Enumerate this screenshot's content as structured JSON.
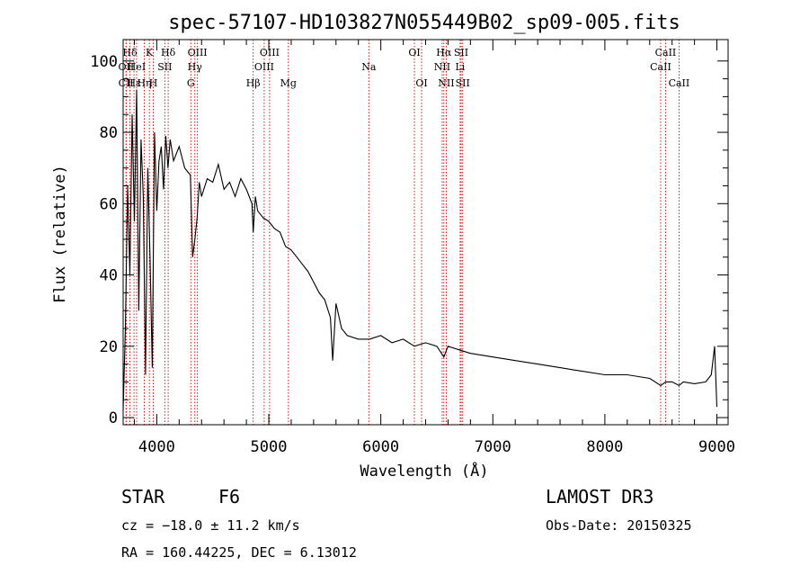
{
  "chart_data": {
    "type": "line",
    "title": "spec-57107-HD103827N055449B02_sp09-005.fits",
    "xlabel": "Wavelength (Å)",
    "ylabel": "Flux (relative)",
    "xlim": [
      3700,
      9100
    ],
    "ylim": [
      -2,
      106
    ],
    "xticks": [
      4000,
      5000,
      6000,
      7000,
      8000,
      9000
    ],
    "yticks": [
      0,
      20,
      40,
      60,
      80,
      100
    ],
    "series": [
      {
        "name": "flux",
        "x": [
          3700,
          3720,
          3740,
          3760,
          3780,
          3800,
          3820,
          3840,
          3860,
          3880,
          3900,
          3920,
          3940,
          3960,
          3980,
          4000,
          4020,
          4040,
          4060,
          4080,
          4100,
          4120,
          4150,
          4200,
          4250,
          4300,
          4320,
          4340,
          4360,
          4380,
          4400,
          4450,
          4500,
          4550,
          4600,
          4650,
          4700,
          4750,
          4800,
          4850,
          4861,
          4880,
          4900,
          4950,
          5000,
          5050,
          5100,
          5150,
          5200,
          5250,
          5300,
          5350,
          5400,
          5450,
          5500,
          5550,
          5570,
          5600,
          5650,
          5700,
          5800,
          5900,
          6000,
          6100,
          6200,
          6300,
          6400,
          6500,
          6563,
          6600,
          6700,
          6800,
          6900,
          7000,
          7200,
          7400,
          7600,
          7800,
          8000,
          8200,
          8400,
          8498,
          8542,
          8600,
          8662,
          8700,
          8800,
          8900,
          8950,
          8980,
          9000
        ],
        "y": [
          2,
          25,
          65,
          40,
          85,
          55,
          92,
          30,
          78,
          62,
          12,
          70,
          45,
          14,
          80,
          58,
          72,
          76,
          64,
          79,
          70,
          78,
          72,
          76,
          70,
          68,
          45,
          50,
          56,
          66,
          62,
          67,
          66,
          71,
          64,
          66,
          62,
          67,
          64,
          60,
          52,
          62,
          58,
          56,
          55,
          53,
          52,
          48,
          47,
          45,
          43,
          41,
          38,
          35,
          33,
          28,
          16,
          32,
          25,
          23,
          22,
          22,
          23,
          21,
          22,
          20,
          21,
          20,
          17,
          20,
          19,
          18,
          17.5,
          17,
          16,
          15,
          14,
          13,
          12,
          12,
          11,
          9,
          10,
          10,
          9,
          10,
          9.5,
          10,
          12,
          20,
          3
        ]
      }
    ],
    "spectral_lines": [
      {
        "label": "Hδ",
        "wavelength": 3760,
        "row": 1
      },
      {
        "label": "OII",
        "wavelength": 3727,
        "row": 2
      },
      {
        "label": "CII",
        "wavelength": 3726,
        "row": 3
      },
      {
        "label": "Hε",
        "wavelength": 3797,
        "row": 3
      },
      {
        "label": "HeI",
        "wavelength": 3820,
        "row": 2
      },
      {
        "label": "K",
        "wavelength": 3934,
        "row": 1
      },
      {
        "label": "Hη",
        "wavelength": 3889,
        "row": 3
      },
      {
        "label": "H",
        "wavelength": 3969,
        "row": 3
      },
      {
        "label": "SII",
        "wavelength": 4072,
        "row": 2
      },
      {
        "label": "Hδ",
        "wavelength": 4102,
        "row": 1
      },
      {
        "label": "OIII",
        "wavelength": 4363,
        "row": 1
      },
      {
        "label": "Hγ",
        "wavelength": 4340,
        "row": 2
      },
      {
        "label": "G",
        "wavelength": 4304,
        "row": 3
      },
      {
        "label": "Hβ",
        "wavelength": 4861,
        "row": 3
      },
      {
        "label": "OIII",
        "wavelength": 5007,
        "row": 1
      },
      {
        "label": "OIII",
        "wavelength": 4959,
        "row": 2
      },
      {
        "label": "Mg",
        "wavelength": 5175,
        "row": 3
      },
      {
        "label": "Na",
        "wavelength": 5893,
        "row": 2
      },
      {
        "label": "OI",
        "wavelength": 6300,
        "row": 1
      },
      {
        "label": "OI",
        "wavelength": 6364,
        "row": 3
      },
      {
        "label": "Hα",
        "wavelength": 6563,
        "row": 1
      },
      {
        "label": "NII",
        "wavelength": 6548,
        "row": 2
      },
      {
        "label": "NII",
        "wavelength": 6584,
        "row": 3
      },
      {
        "label": "SII",
        "wavelength": 6717,
        "row": 1
      },
      {
        "label": "Li",
        "wavelength": 6708,
        "row": 2
      },
      {
        "label": "SII",
        "wavelength": 6731,
        "row": 3
      },
      {
        "label": "CaII",
        "wavelength": 8542,
        "row": 1
      },
      {
        "label": "CaII",
        "wavelength": 8498,
        "row": 2
      },
      {
        "label": "CaII",
        "wavelength": 8662,
        "row": 3
      }
    ]
  },
  "info": {
    "class": "STAR",
    "subclass": "F6",
    "cz": "cz = −18.0 ± 11.2 km/s",
    "coords": "RA = 160.44225, DEC =   6.13012",
    "survey": "LAMOST DR3",
    "obs_date": "Obs-Date: 20150325"
  },
  "colors": {
    "line": "#000000",
    "marker": "#cc0000"
  }
}
